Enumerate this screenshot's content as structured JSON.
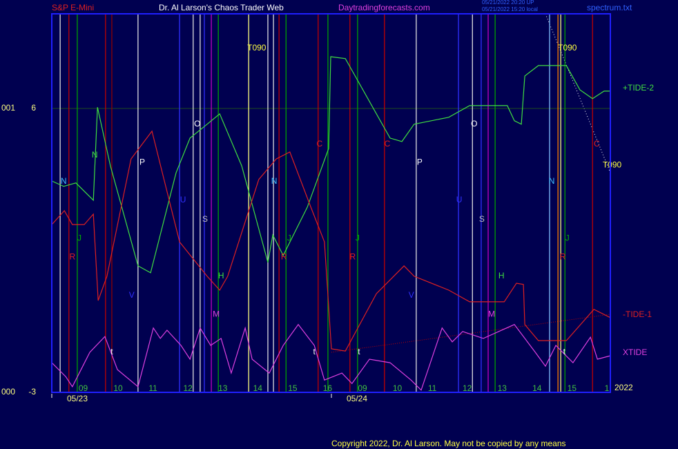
{
  "header": {
    "instrument": "S&P E-Mini",
    "author": "Dr. Al Larson's Chaos Trader Web",
    "site": "Daytradingforecasts.com",
    "stamp1": "05/21/2022 20:20 UP",
    "stamp2": "05/21/2022 15:20 local",
    "file": "spectrum.txt"
  },
  "footer": {
    "copyright": "Copyright 2022, Dr. Al Larson. May not be copied by any means",
    "year": "2022"
  },
  "chart_data": {
    "type": "line",
    "xlim": [
      8.1,
      24.1
    ],
    "ylim": [
      -3,
      9
    ],
    "yticks": [
      -3,
      6
    ],
    "y_left_labels": [
      "000",
      "001"
    ],
    "grid": true,
    "xticks": [
      {
        "value": 9,
        "label": "09"
      },
      10,
      11,
      12,
      13,
      14,
      15,
      16,
      {
        "value": 17,
        "label": "09"
      },
      {
        "value": 18,
        "label": "10"
      },
      {
        "value": 19,
        "label": "11"
      },
      {
        "value": 20,
        "label": "12"
      },
      {
        "value": 21,
        "label": "13"
      },
      {
        "value": 22,
        "label": "14"
      },
      {
        "value": 23,
        "label": "15"
      },
      {
        "value": 24,
        "label": "1"
      }
    ],
    "dates": [
      {
        "value": 8.1,
        "label": "05/23"
      },
      {
        "value": 16.11,
        "label": "05/24"
      }
    ],
    "series": [
      {
        "name": "+TIDE-2",
        "color": "#40e040",
        "x": [
          8.1,
          8.44,
          8.79,
          9.29,
          9.41,
          9.78,
          10.57,
          10.93,
          11.66,
          12.06,
          12.55,
          12.91,
          13.54,
          14.29,
          14.43,
          14.73,
          15.42,
          16.03,
          16.09,
          16.51,
          17.4,
          17.79,
          18.13,
          18.48,
          19.47,
          20.07,
          21.15,
          21.35,
          21.55,
          21.65,
          22.04,
          22.84,
          23.23,
          23.59,
          23.92,
          24.1
        ],
        "values": [
          3.7,
          3.53,
          3.64,
          3.09,
          6.04,
          4.18,
          1.01,
          0.79,
          3.96,
          5.06,
          5.5,
          5.83,
          4.18,
          1.12,
          1.99,
          1.34,
          2.87,
          4.73,
          7.64,
          7.58,
          5.83,
          5.06,
          4.95,
          5.5,
          5.72,
          6.09,
          6.09,
          5.61,
          5.5,
          7.03,
          7.36,
          7.36,
          6.59,
          6.31,
          6.55,
          6.55
        ]
      },
      {
        "name": "-TIDE-1",
        "color": "#e02020",
        "x": [
          8.1,
          8.46,
          8.69,
          9.03,
          9.29,
          9.43,
          9.68,
          10.37,
          10.97,
          11.76,
          12.55,
          12.91,
          13.14,
          14.03,
          14.53,
          14.92,
          15.52,
          15.91,
          16.11,
          16.51,
          17.4,
          18.19,
          18.48,
          19.47,
          20.07,
          21.06,
          21.41,
          21.61,
          21.65,
          22.04,
          22.84,
          23.63,
          24.1
        ],
        "values": [
          2.32,
          2.76,
          2.32,
          2.32,
          2.65,
          -0.09,
          0.68,
          4.4,
          5.28,
          1.77,
          0.68,
          0.24,
          0.68,
          3.75,
          4.4,
          4.62,
          2.87,
          1.77,
          -1.62,
          -1.69,
          0.13,
          1.01,
          0.68,
          0.24,
          -0.13,
          -0.13,
          0.46,
          0.42,
          -0.85,
          -1.36,
          -1.36,
          -0.37,
          -0.63
        ]
      },
      {
        "name": "XTIDE",
        "color": "#e040e0",
        "x": [
          8.1,
          8.5,
          8.69,
          9.19,
          9.62,
          9.98,
          10.57,
          11.01,
          11.21,
          11.4,
          11.8,
          12.06,
          12.35,
          12.65,
          12.95,
          13.24,
          13.64,
          13.84,
          14.33,
          14.73,
          15.16,
          15.62,
          15.91,
          16.41,
          16.7,
          17.2,
          17.79,
          18.39,
          18.68,
          19.28,
          19.57,
          19.87,
          20.46,
          21.35,
          21.95,
          22.24,
          22.54,
          23.03,
          23.53,
          23.73,
          24.1
        ],
        "values": [
          -2.06,
          -2.5,
          -2.82,
          -1.73,
          -1.23,
          -2.28,
          -2.82,
          -0.96,
          -1.29,
          -1.03,
          -1.51,
          -1.95,
          -0.96,
          -1.51,
          -1.29,
          -2.39,
          -0.96,
          -1.95,
          -2.39,
          -1.51,
          -0.85,
          -1.51,
          -2.61,
          -2.39,
          -2.72,
          -1.95,
          -2.06,
          -2.61,
          -2.93,
          -0.96,
          -1.4,
          -1.07,
          -1.29,
          -0.85,
          -1.73,
          -2.17,
          -1.51,
          -2.06,
          -1.25,
          -1.95,
          -1.84
        ]
      }
    ],
    "vlines": [
      {
        "x": 8.34,
        "color": "#e0e0e0"
      },
      {
        "x": 8.59,
        "color": "#c00000"
      },
      {
        "x": 8.83,
        "color": "#00a000"
      },
      {
        "x": 9.64,
        "color": "#c00000"
      },
      {
        "x": 9.82,
        "color": "#900000"
      },
      {
        "x": 10.57,
        "color": "#e0e0e0"
      },
      {
        "x": 11.76,
        "color": "#3030ff"
      },
      {
        "x": 12.15,
        "color": "#e0e0e0"
      },
      {
        "x": 12.35,
        "color": "#e0e0e0"
      },
      {
        "x": 12.47,
        "color": "#3030ff"
      },
      {
        "x": 12.67,
        "color": "#c000c0"
      },
      {
        "x": 12.87,
        "color": "#00a000"
      },
      {
        "x": 13.74,
        "color": "#ffff80"
      },
      {
        "x": 14.29,
        "color": "#e0e0e0"
      },
      {
        "x": 14.45,
        "color": "#e0e0e0"
      },
      {
        "x": 14.61,
        "color": "#c00000"
      },
      {
        "x": 14.81,
        "color": "#00a000"
      },
      {
        "x": 15.73,
        "color": "#c00000"
      },
      {
        "x": 16.01,
        "color": "#00a000"
      },
      {
        "x": 16.64,
        "color": "#c00000"
      },
      {
        "x": 16.86,
        "color": "#00a000"
      },
      {
        "x": 17.63,
        "color": "#c00000"
      },
      {
        "x": 18.54,
        "color": "#e0e0e0"
      },
      {
        "x": 19.75,
        "color": "#3030ff"
      },
      {
        "x": 20.15,
        "color": "#e0e0e0"
      },
      {
        "x": 20.4,
        "color": "#3030ff"
      },
      {
        "x": 20.6,
        "color": "#c000c0"
      },
      {
        "x": 20.8,
        "color": "#00a000"
      },
      {
        "x": 22.36,
        "color": "#80c0ff"
      },
      {
        "x": 22.6,
        "color": "#ff8000"
      },
      {
        "x": 22.68,
        "color": "#ffff80"
      },
      {
        "x": 22.8,
        "color": "#00a000"
      },
      {
        "x": 23.59,
        "color": "#c00000"
      }
    ],
    "annotations": [
      {
        "text": "N",
        "x": 8.44,
        "y": 3.68,
        "color": "#40c0ff"
      },
      {
        "text": "J",
        "x": 8.89,
        "y": 1.88,
        "color": "#00b000"
      },
      {
        "text": "R",
        "x": 8.69,
        "y": 1.29,
        "color": "#e02020"
      },
      {
        "text": "N",
        "x": 9.33,
        "y": 4.51,
        "color": "#40e040"
      },
      {
        "text": "P",
        "x": 10.69,
        "y": 4.29,
        "color": "#ffffff"
      },
      {
        "text": "U",
        "x": 11.86,
        "y": 3.09,
        "color": "#3030ff"
      },
      {
        "text": "S",
        "x": 12.49,
        "y": 2.48,
        "color": "#c0c0c0"
      },
      {
        "text": "O",
        "x": 12.27,
        "y": 5.5,
        "color": "#ffffff"
      },
      {
        "text": "V",
        "x": 10.39,
        "y": 0.07,
        "color": "#3030ff"
      },
      {
        "text": "M",
        "x": 12.81,
        "y": -0.53,
        "color": "#e040e0"
      },
      {
        "text": "H",
        "x": 12.95,
        "y": 0.68,
        "color": "#40e040"
      },
      {
        "text": "t",
        "x": 9.82,
        "y": -1.73,
        "color": "#ffffff"
      },
      {
        "text": "T090",
        "x": 13.97,
        "y": 7.91,
        "color": "#ffff40"
      },
      {
        "text": "N",
        "x": 14.47,
        "y": 3.68,
        "color": "#40c0ff"
      },
      {
        "text": "J",
        "x": 14.9,
        "y": 1.88,
        "color": "#00b000"
      },
      {
        "text": "R",
        "x": 14.75,
        "y": 1.29,
        "color": "#e02020"
      },
      {
        "text": "C",
        "x": 15.77,
        "y": 4.86,
        "color": "#e02020"
      },
      {
        "text": "J",
        "x": 16.86,
        "y": 1.88,
        "color": "#00b000"
      },
      {
        "text": "R",
        "x": 16.72,
        "y": 1.29,
        "color": "#e02020"
      },
      {
        "text": "C",
        "x": 17.71,
        "y": 4.86,
        "color": "#e02020"
      },
      {
        "text": "P",
        "x": 18.64,
        "y": 4.29,
        "color": "#ffffff"
      },
      {
        "text": "U",
        "x": 19.77,
        "y": 3.09,
        "color": "#3030ff"
      },
      {
        "text": "S",
        "x": 20.42,
        "y": 2.48,
        "color": "#c0c0c0"
      },
      {
        "text": "O",
        "x": 20.2,
        "y": 5.5,
        "color": "#ffffff"
      },
      {
        "text": "V",
        "x": 18.4,
        "y": 0.07,
        "color": "#3030ff"
      },
      {
        "text": "M",
        "x": 20.7,
        "y": -0.53,
        "color": "#e040e0"
      },
      {
        "text": "H",
        "x": 20.98,
        "y": 0.68,
        "color": "#40e040"
      },
      {
        "text": "t",
        "x": 15.62,
        "y": -1.73,
        "color": "#ffffff"
      },
      {
        "text": "t",
        "x": 16.9,
        "y": -1.73,
        "color": "#ffffff"
      },
      {
        "text": "t",
        "x": 22.78,
        "y": -1.73,
        "color": "#ffffff"
      },
      {
        "text": "T090",
        "x": 22.87,
        "y": 7.91,
        "color": "#ffff40"
      },
      {
        "text": "N",
        "x": 22.42,
        "y": 3.68,
        "color": "#40c0ff"
      },
      {
        "text": "J",
        "x": 22.87,
        "y": 1.88,
        "color": "#00b000"
      },
      {
        "text": "R",
        "x": 22.74,
        "y": 1.29,
        "color": "#e02020"
      },
      {
        "text": "C",
        "x": 23.71,
        "y": 4.86,
        "color": "#e02020"
      },
      {
        "text": "T090",
        "x": 24.15,
        "y": 4.2,
        "color": "#ffff40"
      }
    ]
  }
}
